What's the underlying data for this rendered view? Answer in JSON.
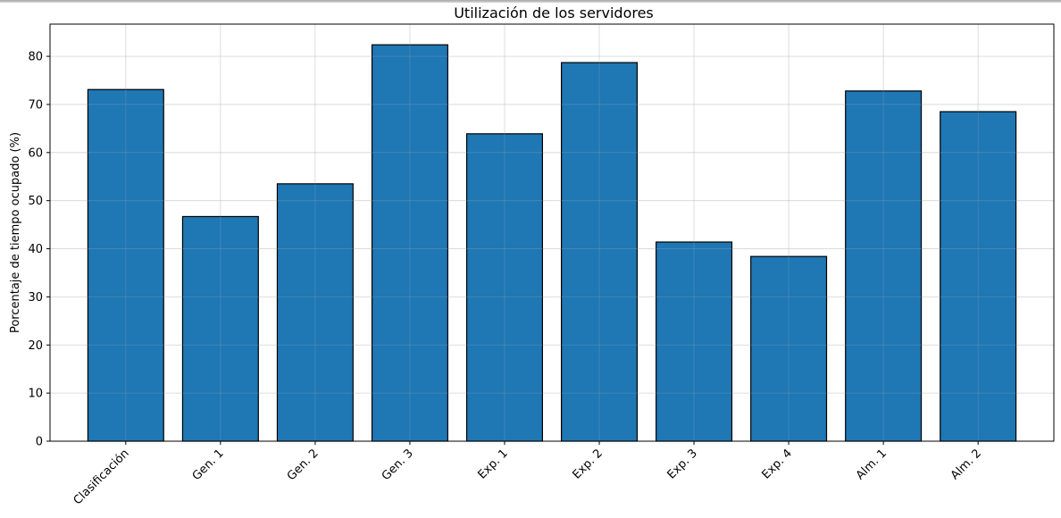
{
  "chart_data": {
    "type": "bar",
    "title": "Utilización de los servidores",
    "xlabel": "",
    "ylabel": "Porcentaje de tiempo ocupado (%)",
    "categories": [
      "Clasificación",
      "Gen. 1",
      "Gen. 2",
      "Gen. 3",
      "Exp. 1",
      "Exp. 2",
      "Exp. 3",
      "Exp. 4",
      "Alm. 1",
      "Alm. 2"
    ],
    "values": [
      73.1,
      46.7,
      53.5,
      82.4,
      63.9,
      78.7,
      41.4,
      38.4,
      72.8,
      68.5
    ],
    "ylim": [
      0,
      86.7
    ],
    "yticks": [
      0,
      10,
      20,
      30,
      40,
      50,
      60,
      70,
      80
    ],
    "grid": true,
    "bar_color": "#1f77b4",
    "bar_edge_color": "#000000"
  }
}
